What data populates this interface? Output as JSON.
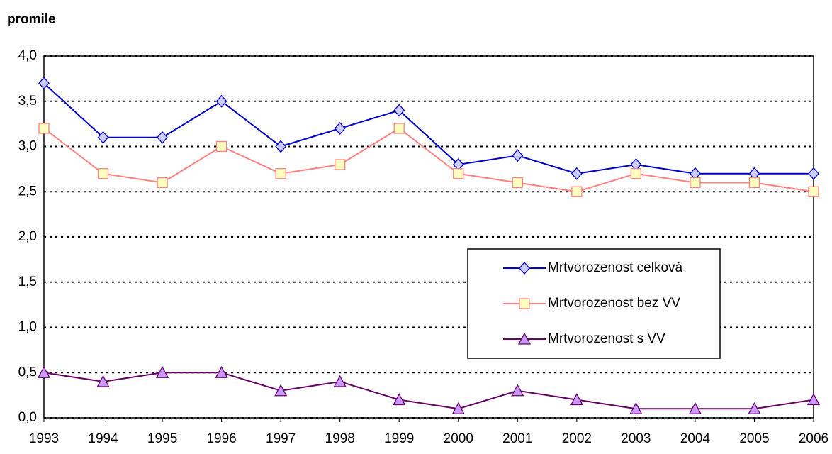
{
  "chart_data": {
    "type": "line",
    "ylabel": "promile",
    "categories": [
      "1993",
      "1994",
      "1995",
      "1996",
      "1997",
      "1998",
      "1999",
      "2000",
      "2001",
      "2002",
      "2003",
      "2004",
      "2005",
      "2006"
    ],
    "series": [
      {
        "name": "Mrtvorozenost celková",
        "color": "#0000cc",
        "marker_fill": "#ccccff",
        "marker": "diamond",
        "values": [
          3.7,
          3.1,
          3.1,
          3.5,
          3.0,
          3.2,
          3.4,
          2.8,
          2.9,
          2.7,
          2.8,
          2.7,
          2.7,
          2.7
        ]
      },
      {
        "name": "Mrtvorozenost bez VV",
        "color": "#ff8080",
        "marker_fill": "#ffffc0",
        "marker": "square",
        "values": [
          3.2,
          2.7,
          2.6,
          3.0,
          2.7,
          2.8,
          3.2,
          2.7,
          2.6,
          2.5,
          2.7,
          2.6,
          2.6,
          2.5
        ]
      },
      {
        "name": "Mrtvorozenost s VV",
        "color": "#660066",
        "marker_fill": "#cc99ff",
        "marker": "triangle",
        "values": [
          0.5,
          0.4,
          0.5,
          0.5,
          0.3,
          0.4,
          0.2,
          0.1,
          0.3,
          0.2,
          0.1,
          0.1,
          0.1,
          0.2
        ]
      }
    ],
    "ylim": [
      0,
      4
    ],
    "yticks": [
      {
        "value": 0,
        "label": "0,0"
      },
      {
        "value": 0.5,
        "label": "0,5"
      },
      {
        "value": 1,
        "label": "1,0"
      },
      {
        "value": 1.5,
        "label": "1,5"
      },
      {
        "value": 2,
        "label": "2,0"
      },
      {
        "value": 2.5,
        "label": "2,5"
      },
      {
        "value": 3,
        "label": "3,0"
      },
      {
        "value": 3.5,
        "label": "3,5"
      },
      {
        "value": 4,
        "label": "4,0"
      }
    ],
    "grid": true,
    "legend": "right"
  }
}
